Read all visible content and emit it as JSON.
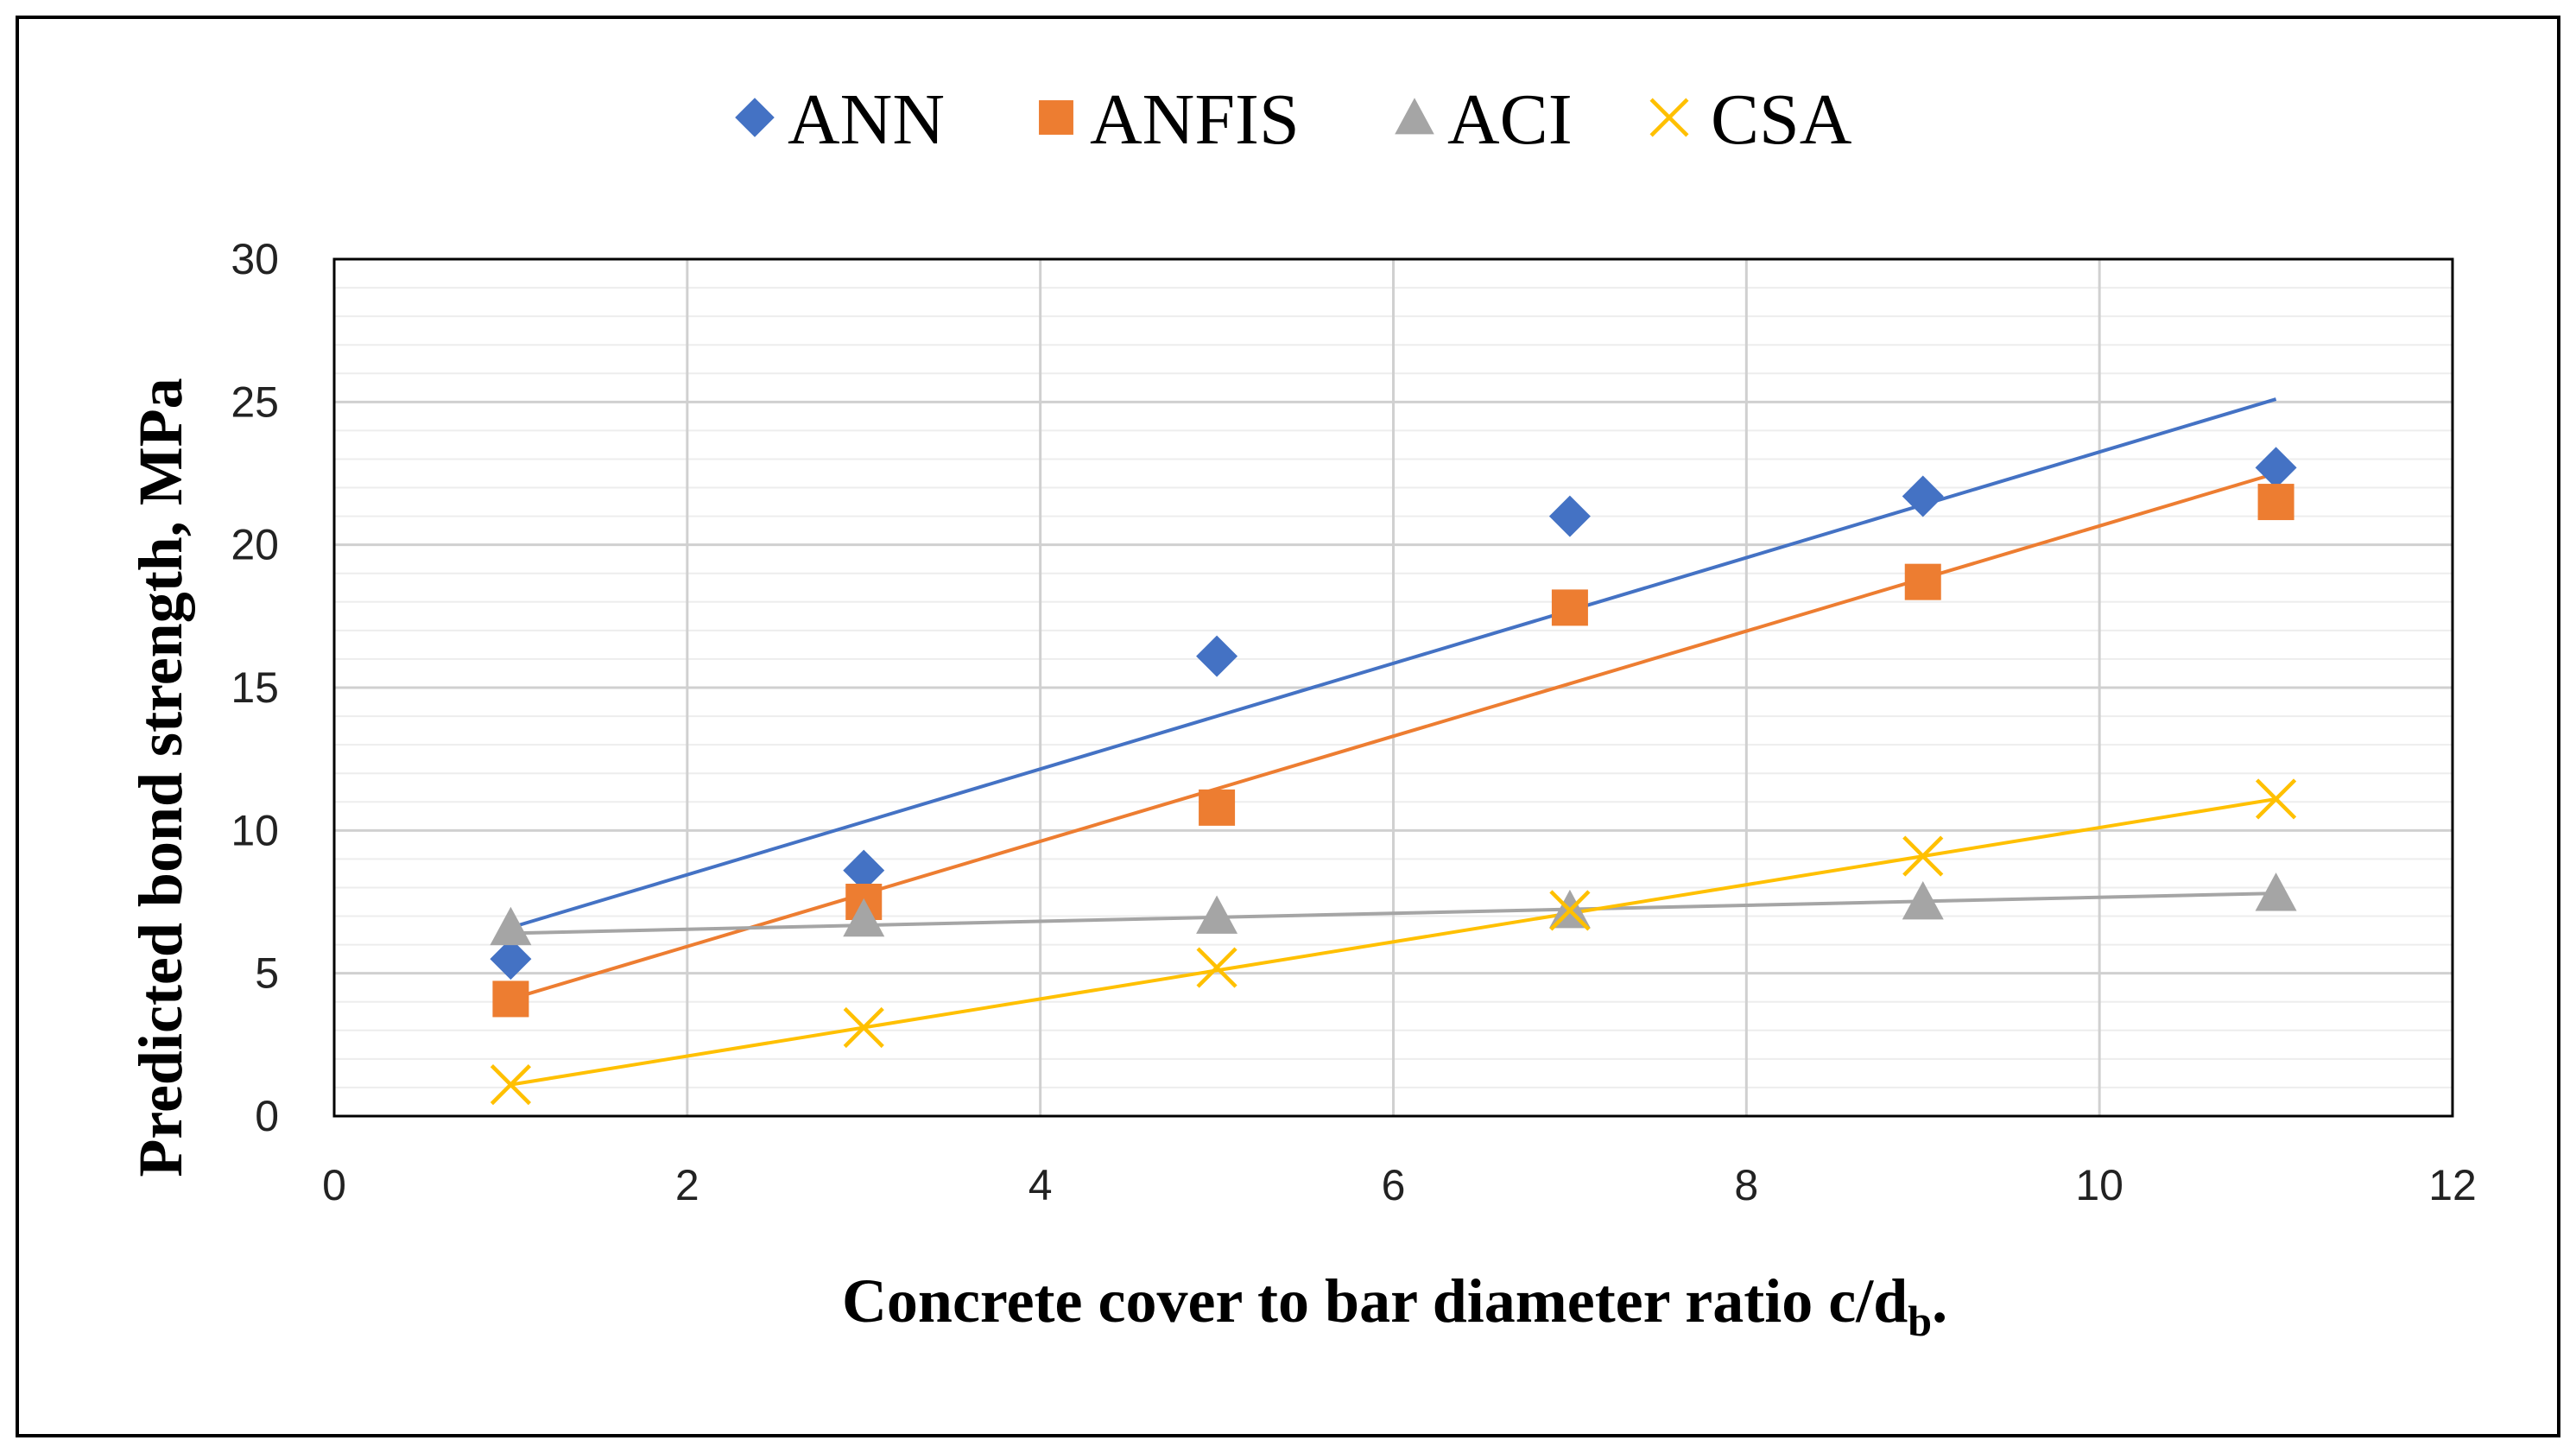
{
  "chart_data": {
    "type": "scatter",
    "title": "",
    "xlabel": "Concrete cover to bar diameter ratio c/d",
    "xlabel_subscript": "b",
    "xlabel_suffix": ".",
    "ylabel": "Predicted  bond strength, MPa",
    "xlim": [
      0,
      12
    ],
    "ylim": [
      0,
      30
    ],
    "x_ticks": [
      0,
      2,
      4,
      6,
      8,
      10,
      12
    ],
    "y_ticks": [
      0,
      5,
      10,
      15,
      20,
      25,
      30
    ],
    "y_minor_step": 1,
    "grid": true,
    "legend_position": "top",
    "x": [
      1,
      3,
      5,
      7,
      9,
      11
    ],
    "series": [
      {
        "name": "ANN",
        "marker": "diamond",
        "color": "#4472C4",
        "values": [
          5.5,
          8.6,
          16.1,
          21.0,
          21.7,
          22.7
        ],
        "trendline": [
          [
            1,
            6.6
          ],
          [
            11,
            25.1
          ]
        ]
      },
      {
        "name": "ANFIS",
        "marker": "square",
        "color": "#ED7D31",
        "values": [
          4.1,
          7.5,
          10.8,
          17.8,
          18.7,
          21.5
        ],
        "trendline": [
          [
            1,
            4.1
          ],
          [
            11,
            22.5
          ]
        ]
      },
      {
        "name": "ACI",
        "marker": "triangle",
        "color": "#A5A5A5",
        "values": [
          6.6,
          6.9,
          7.0,
          7.2,
          7.5,
          7.8
        ],
        "trendline": [
          [
            1,
            6.4
          ],
          [
            11,
            7.8
          ]
        ]
      },
      {
        "name": "CSA",
        "marker": "x",
        "color": "#FFC000",
        "values": [
          1.1,
          3.1,
          5.2,
          7.2,
          9.1,
          11.1
        ],
        "trendline": [
          [
            1,
            1.1
          ],
          [
            11,
            11.1
          ]
        ]
      }
    ]
  }
}
